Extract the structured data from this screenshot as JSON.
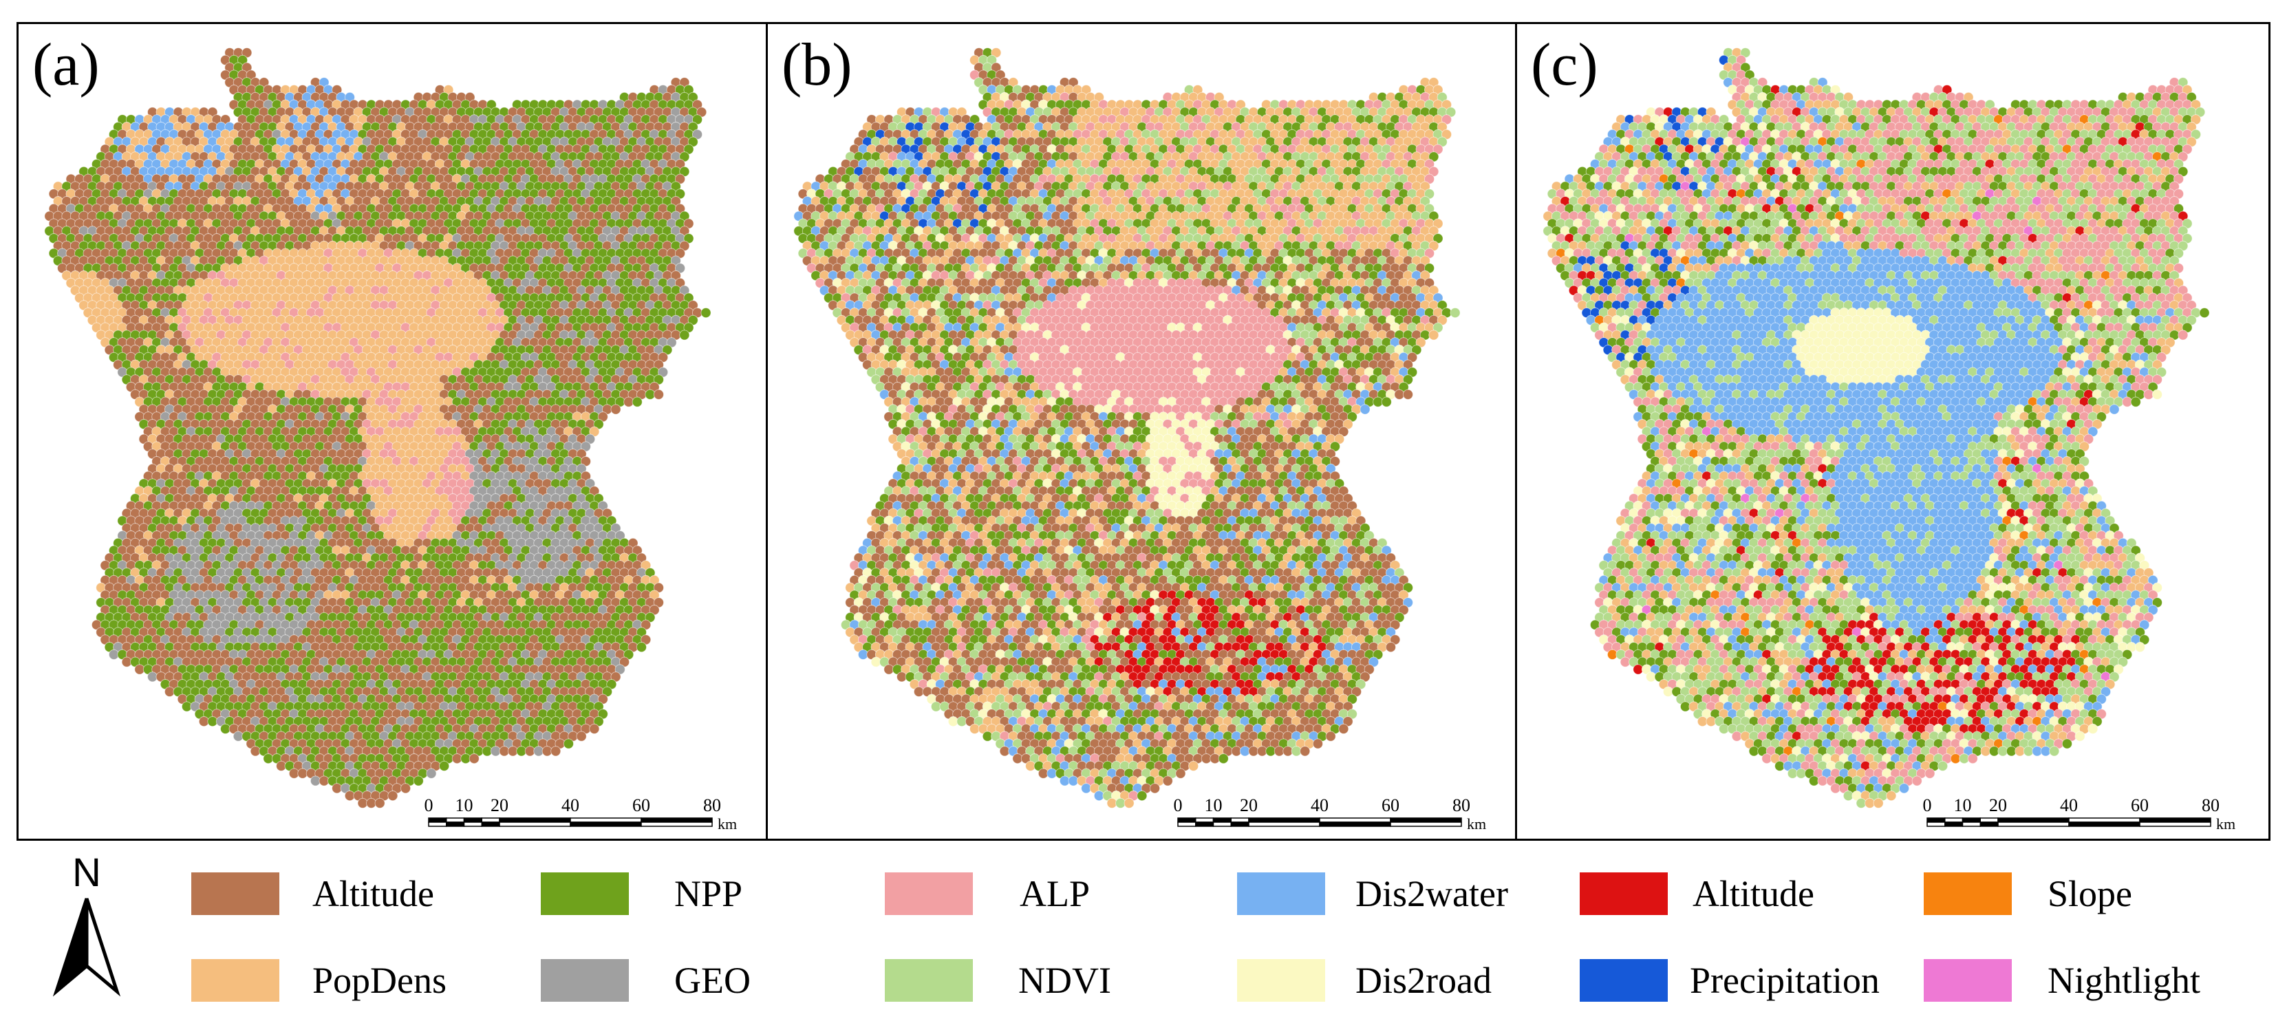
{
  "panels": [
    {
      "id": "a",
      "label": "(a)"
    },
    {
      "id": "b",
      "label": "(b)"
    },
    {
      "id": "c",
      "label": "(c)"
    }
  ],
  "scalebar": {
    "ticks": [
      "0",
      "10",
      "20",
      "40",
      "60",
      "80"
    ],
    "unit": "km"
  },
  "north_arrow": {
    "letter": "N"
  },
  "legend": [
    {
      "label": "Altitude",
      "color": "#B87550"
    },
    {
      "label": "PopDens",
      "color": "#F5BE7E"
    },
    {
      "label": "NPP",
      "color": "#6FA21C"
    },
    {
      "label": "GEO",
      "color": "#A0A0A0"
    },
    {
      "label": "ALP",
      "color": "#F2A0A3"
    },
    {
      "label": "NDVI",
      "color": "#B4DB8D"
    },
    {
      "label": "Dis2water",
      "color": "#77B1F2"
    },
    {
      "label": "Dis2road",
      "color": "#FBF9C2"
    },
    {
      "label": "Altitude",
      "color": "#DD1212"
    },
    {
      "label": "Precipitation",
      "color": "#1659D8"
    },
    {
      "label": "Slope",
      "color": "#F7830F"
    },
    {
      "label": "Nightlight",
      "color": "#EE79D4"
    }
  ]
}
